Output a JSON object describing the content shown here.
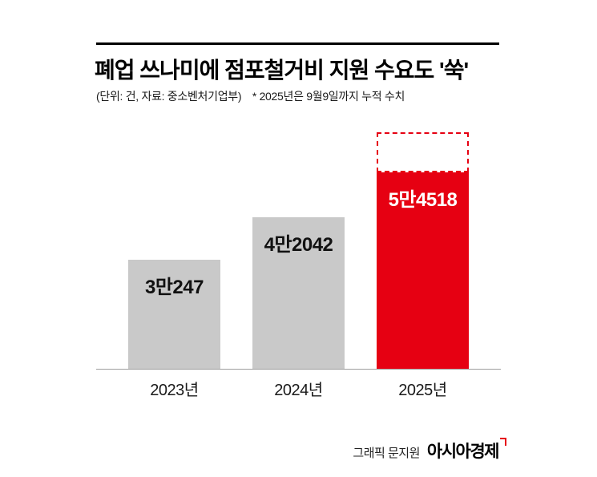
{
  "chart_data": {
    "type": "bar",
    "title": "폐업 쓰나미에 점포철거비 지원 수요도 '쑥'",
    "unit_note": "(단위: 건, 자료: 중소벤처기업부)",
    "footnote": "* 2025년은 9월9일까지 누적 수치",
    "categories": [
      "2023년",
      "2024년",
      "2025년"
    ],
    "values": [
      30247,
      42042,
      54518
    ],
    "value_labels": [
      "3만247",
      "4만2042",
      "5만4518"
    ],
    "bar_colors": [
      "#c9c9c9",
      "#c9c9c9",
      "#e60012"
    ],
    "label_colors": [
      "#111111",
      "#111111",
      "#ffffff"
    ],
    "highlight_index": 2,
    "dashed_projection_on_highlight": true,
    "xlabel": "",
    "ylabel": "",
    "ylim": [
      0,
      60000
    ],
    "grid": false,
    "legend": false
  },
  "footer": {
    "credit": "그래픽 문지원",
    "brand": "아시아경제"
  },
  "colors": {
    "accent_red": "#e60012",
    "bar_gray": "#c9c9c9",
    "rule_black": "#000000"
  }
}
